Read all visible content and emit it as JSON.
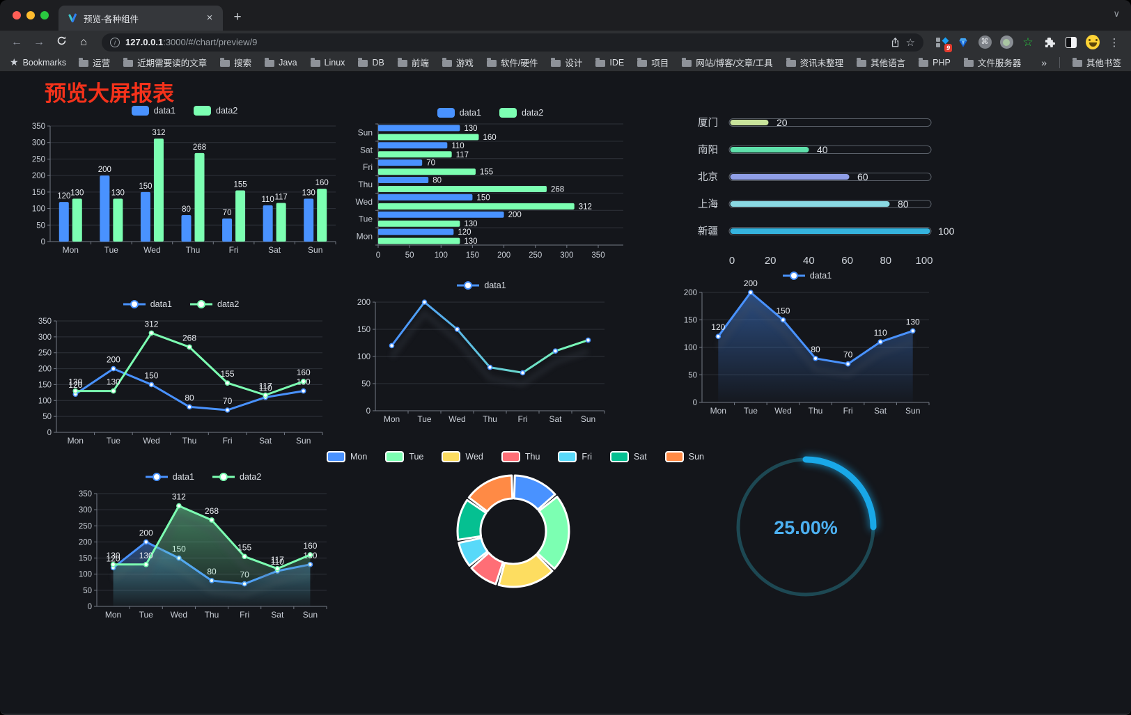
{
  "browser": {
    "tab_title": "预览-各种组件",
    "url_host": "127.0.0.1",
    "url_rest": ":3000/#/chart/preview/9",
    "badge_count": "9",
    "bookmarks_label": "Bookmarks",
    "bookmarks": [
      "运营",
      "近期需要读的文章",
      "搜索",
      "Java",
      "Linux",
      "DB",
      "前端",
      "游戏",
      "软件/硬件",
      "设计",
      "IDE",
      "项目",
      "网站/博客/文章/工具",
      "资讯未整理",
      "其他语言",
      "PHP",
      "文件服务器"
    ],
    "bookmarks_overflow": "»",
    "other_bookmarks": "其他书签"
  },
  "page": {
    "title": "预览大屏报表"
  },
  "colors": {
    "accent_blue": "#4992ff",
    "accent_green": "#7cffb2",
    "title_red": "#f5321b"
  },
  "chart_data": [
    {
      "id": "bar-vertical",
      "type": "bar",
      "categories": [
        "Mon",
        "Tue",
        "Wed",
        "Thu",
        "Fri",
        "Sat",
        "Sun"
      ],
      "series": [
        {
          "name": "data1",
          "color": "#4992ff",
          "values": [
            120,
            200,
            150,
            80,
            70,
            110,
            130
          ],
          "labels": true
        },
        {
          "name": "data2",
          "color": "#7cffb2",
          "values": [
            130,
            130,
            312,
            268,
            155,
            117,
            160
          ],
          "labels": true
        }
      ],
      "ylim": [
        0,
        350
      ],
      "ytick_step": 50,
      "legend": "rect",
      "grid": true
    },
    {
      "id": "bar-horizontal",
      "type": "hbar",
      "categories": [
        "Mon",
        "Tue",
        "Wed",
        "Thu",
        "Fri",
        "Sat",
        "Sun"
      ],
      "series": [
        {
          "name": "data1",
          "color": "#4992ff",
          "values": [
            120,
            200,
            150,
            80,
            70,
            110,
            130
          ],
          "labels": true
        },
        {
          "name": "data2",
          "color": "#7cffb2",
          "values": [
            130,
            130,
            312,
            268,
            155,
            117,
            160
          ],
          "labels": true
        }
      ],
      "xlim": [
        0,
        350
      ],
      "xtick_step": 50,
      "legend": "rect",
      "grid": true
    },
    {
      "id": "progress-bars",
      "type": "progress",
      "items": [
        {
          "label": "厦门",
          "value": 20,
          "color": "#c9e49b"
        },
        {
          "label": "南阳",
          "value": 40,
          "color": "#5fe0ab"
        },
        {
          "label": "北京",
          "value": 60,
          "color": "#8f9ee6"
        },
        {
          "label": "上海",
          "value": 80,
          "color": "#8ad9e3"
        },
        {
          "label": "新疆",
          "value": 100,
          "color": "#35b3de"
        }
      ],
      "xlim": [
        0,
        100
      ],
      "xticks": [
        0,
        20,
        40,
        60,
        80,
        100
      ]
    },
    {
      "id": "line-multi",
      "type": "line",
      "categories": [
        "Mon",
        "Tue",
        "Wed",
        "Thu",
        "Fri",
        "Sat",
        "Sun"
      ],
      "series": [
        {
          "name": "data1",
          "color": "#4992ff",
          "values": [
            120,
            200,
            150,
            80,
            70,
            110,
            130
          ],
          "labels": true
        },
        {
          "name": "data2",
          "color": "#7cffb2",
          "values": [
            130,
            130,
            312,
            268,
            155,
            117,
            160
          ],
          "labels": true
        }
      ],
      "ylim": [
        0,
        350
      ],
      "ytick_step": 50,
      "legend": "line",
      "grid": true
    },
    {
      "id": "line-gradient",
      "type": "line",
      "categories": [
        "Mon",
        "Tue",
        "Wed",
        "Thu",
        "Fri",
        "Sat",
        "Sun"
      ],
      "series": [
        {
          "name": "data1",
          "color": "#4992ff",
          "gradient": [
            "#4992ff",
            "#7cffb2"
          ],
          "values": [
            120,
            200,
            150,
            80,
            70,
            110,
            130
          ],
          "labels": false
        }
      ],
      "ylim": [
        0,
        200
      ],
      "ytick_step": 50,
      "legend": "line",
      "grid": true,
      "shadow": true
    },
    {
      "id": "line-area",
      "type": "line",
      "categories": [
        "Mon",
        "Tue",
        "Wed",
        "Thu",
        "Fri",
        "Sat",
        "Sun"
      ],
      "series": [
        {
          "name": "data1",
          "color": "#4992ff",
          "area": true,
          "values": [
            120,
            200,
            150,
            80,
            70,
            110,
            130
          ],
          "labels": true
        }
      ],
      "ylim": [
        0,
        200
      ],
      "ytick_step": 50,
      "legend": "line",
      "grid": true,
      "shadow": true
    },
    {
      "id": "line-area-multi",
      "type": "line",
      "categories": [
        "Mon",
        "Tue",
        "Wed",
        "Thu",
        "Fri",
        "Sat",
        "Sun"
      ],
      "series": [
        {
          "name": "data1",
          "color": "#4992ff",
          "area": true,
          "values": [
            120,
            200,
            150,
            80,
            70,
            110,
            130
          ],
          "labels": true
        },
        {
          "name": "data2",
          "color": "#7cffb2",
          "area": true,
          "values": [
            130,
            130,
            312,
            268,
            155,
            117,
            160
          ],
          "labels": true
        }
      ],
      "ylim": [
        0,
        350
      ],
      "ytick_step": 50,
      "legend": "line",
      "grid": true,
      "shadow": true
    },
    {
      "id": "donut",
      "type": "pie",
      "items": [
        {
          "label": "Mon",
          "value": 120,
          "color": "#4992ff"
        },
        {
          "label": "Tue",
          "value": 200,
          "color": "#7cffb2"
        },
        {
          "label": "Wed",
          "value": 150,
          "color": "#fddd60"
        },
        {
          "label": "Thu",
          "value": 80,
          "color": "#ff6e76"
        },
        {
          "label": "Fri",
          "value": 70,
          "color": "#58d9f9"
        },
        {
          "label": "Sat",
          "value": 110,
          "color": "#05c091"
        },
        {
          "label": "Sun",
          "value": 130,
          "color": "#ff8a45"
        }
      ],
      "legend": "rect-border",
      "inner_radius": 47,
      "outer_radius": 80,
      "border_color": "#ffffff"
    },
    {
      "id": "gauge",
      "type": "gauge",
      "value": 25,
      "max": 100,
      "label": "25.00%",
      "track_color": "#1d4853",
      "color": "#19a8e8",
      "text_color": "#4db1f2"
    }
  ]
}
